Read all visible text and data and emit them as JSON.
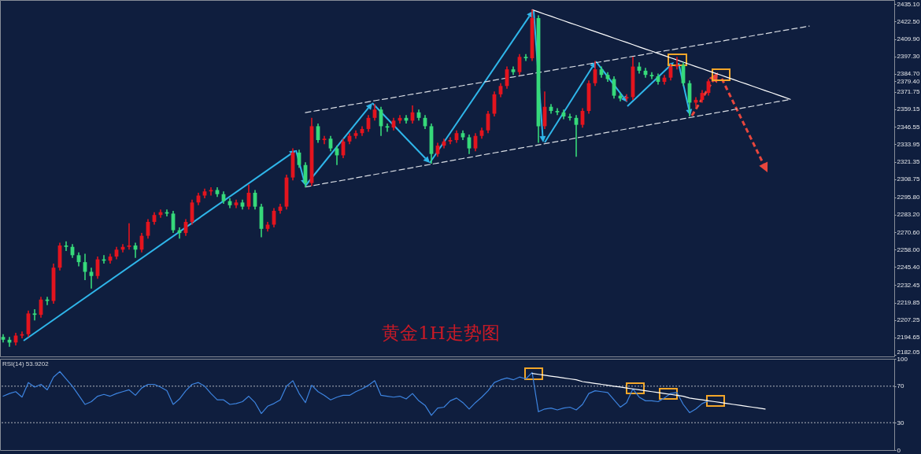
{
  "chart_data": [
    {
      "type": "candlestick",
      "title": "黄金1H走势图",
      "categories": [
        null,
        null,
        null,
        null,
        null,
        null,
        null,
        null,
        null,
        null,
        null,
        null,
        null,
        null,
        null,
        null,
        null,
        null,
        null,
        null,
        null,
        null,
        null,
        null,
        null,
        null,
        null,
        null,
        null,
        null,
        null,
        null,
        null,
        null,
        null,
        null,
        null,
        null,
        null,
        null,
        null,
        null,
        null,
        null,
        null,
        null,
        null,
        null,
        null,
        null,
        null,
        null,
        null,
        null,
        null,
        null,
        null,
        null,
        null,
        null,
        null,
        null,
        null,
        null,
        null,
        null,
        null,
        null,
        null,
        null,
        null,
        null,
        null,
        null,
        null,
        null,
        null,
        null,
        null,
        null,
        null,
        null,
        null,
        null,
        null,
        null,
        null,
        null,
        null,
        null,
        null,
        null,
        null,
        null,
        null,
        null,
        null,
        null,
        null,
        null,
        null,
        null,
        null,
        null,
        null,
        null,
        null,
        null,
        null,
        null,
        null,
        null,
        null,
        null,
        null,
        null,
        null,
        null,
        null,
        null,
        null,
        null,
        null,
        null,
        null,
        null,
        null,
        null,
        null,
        null,
        null,
        null,
        null,
        null,
        null,
        null,
        null,
        null,
        null,
        null,
        null,
        null
      ],
      "ohlc": [
        [
          2195,
          2197,
          2191,
          2193
        ],
        [
          2193,
          2195,
          2188,
          2191
        ],
        [
          2191,
          2198,
          2189,
          2196
        ],
        [
          2196,
          2199,
          2194,
          2197
        ],
        [
          2197,
          2214,
          2195,
          2212
        ],
        [
          2212,
          2215,
          2207,
          2211
        ],
        [
          2211,
          2224,
          2209,
          2222
        ],
        [
          2222,
          2224,
          2218,
          2221
        ],
        [
          2221,
          2248,
          2219,
          2245
        ],
        [
          2245,
          2263,
          2243,
          2261
        ],
        [
          2261,
          2264,
          2257,
          2260
        ],
        [
          2260,
          2262,
          2252,
          2254
        ],
        [
          2254,
          2256,
          2246,
          2249
        ],
        [
          2249,
          2255,
          2236,
          2242
        ],
        [
          2242,
          2245,
          2230,
          2239
        ],
        [
          2239,
          2253,
          2237,
          2251
        ],
        [
          2251,
          2254,
          2248,
          2250
        ],
        [
          2250,
          2255,
          2248,
          2253
        ],
        [
          2253,
          2260,
          2251,
          2258
        ],
        [
          2258,
          2262,
          2256,
          2260
        ],
        [
          2260,
          2277,
          2258,
          2261
        ],
        [
          2261,
          2263,
          2252,
          2258
        ],
        [
          2258,
          2270,
          2256,
          2268
        ],
        [
          2268,
          2280,
          2266,
          2278
        ],
        [
          2278,
          2285,
          2276,
          2283
        ],
        [
          2283,
          2287,
          2281,
          2285
        ],
        [
          2285,
          2287,
          2282,
          2284
        ],
        [
          2284,
          2286,
          2270,
          2272
        ],
        [
          2272,
          2274,
          2266,
          2270
        ],
        [
          2270,
          2280,
          2268,
          2278
        ],
        [
          2278,
          2294,
          2276,
          2292
        ],
        [
          2292,
          2299,
          2290,
          2297
        ],
        [
          2297,
          2302,
          2295,
          2300
        ],
        [
          2300,
          2303,
          2297,
          2301
        ],
        [
          2301,
          2303,
          2296,
          2298
        ],
        [
          2298,
          2300,
          2291,
          2293
        ],
        [
          2293,
          2295,
          2288,
          2290
        ],
        [
          2290,
          2294,
          2288,
          2292
        ],
        [
          2292,
          2294,
          2287,
          2289
        ],
        [
          2289,
          2305,
          2287,
          2299
        ],
        [
          2299,
          2301,
          2287,
          2289
        ],
        [
          2289,
          2291,
          2267,
          2273
        ],
        [
          2273,
          2278,
          2271,
          2276
        ],
        [
          2276,
          2288,
          2274,
          2286
        ],
        [
          2286,
          2291,
          2284,
          2289
        ],
        [
          2289,
          2312,
          2287,
          2310
        ],
        [
          2310,
          2331,
          2308,
          2328
        ],
        [
          2328,
          2330,
          2317,
          2319
        ],
        [
          2319,
          2321,
          2303,
          2306
        ],
        [
          2306,
          2353,
          2304,
          2347
        ],
        [
          2347,
          2349,
          2335,
          2337
        ],
        [
          2337,
          2340,
          2334,
          2338
        ],
        [
          2338,
          2340,
          2329,
          2331
        ],
        [
          2331,
          2333,
          2319,
          2326
        ],
        [
          2326,
          2338,
          2324,
          2336
        ],
        [
          2336,
          2342,
          2334,
          2340
        ],
        [
          2340,
          2344,
          2338,
          2342
        ],
        [
          2342,
          2347,
          2340,
          2345
        ],
        [
          2345,
          2355,
          2343,
          2353
        ],
        [
          2353,
          2363,
          2351,
          2359
        ],
        [
          2359,
          2361,
          2340,
          2347
        ],
        [
          2347,
          2349,
          2343,
          2346
        ],
        [
          2346,
          2353,
          2344,
          2351
        ],
        [
          2351,
          2355,
          2349,
          2353
        ],
        [
          2353,
          2355,
          2349,
          2351
        ],
        [
          2351,
          2362,
          2349,
          2357
        ],
        [
          2357,
          2359,
          2351,
          2353
        ],
        [
          2353,
          2355,
          2345,
          2347
        ],
        [
          2347,
          2349,
          2320,
          2327
        ],
        [
          2327,
          2335,
          2325,
          2333
        ],
        [
          2333,
          2338,
          2331,
          2336
        ],
        [
          2336,
          2339,
          2334,
          2337
        ],
        [
          2337,
          2344,
          2335,
          2342
        ],
        [
          2342,
          2344,
          2337,
          2339
        ],
        [
          2339,
          2341,
          2327,
          2331
        ],
        [
          2331,
          2342,
          2329,
          2340
        ],
        [
          2340,
          2346,
          2338,
          2344
        ],
        [
          2344,
          2358,
          2342,
          2356
        ],
        [
          2356,
          2372,
          2354,
          2370
        ],
        [
          2370,
          2378,
          2368,
          2376
        ],
        [
          2376,
          2390,
          2374,
          2388
        ],
        [
          2388,
          2390,
          2384,
          2386
        ],
        [
          2386,
          2399,
          2384,
          2397
        ],
        [
          2397,
          2399,
          2394,
          2396
        ],
        [
          2396,
          2431,
          2394,
          2425
        ],
        [
          2425,
          2427,
          2335,
          2347
        ],
        [
          2347,
          2372,
          2345,
          2361
        ],
        [
          2361,
          2363,
          2356,
          2358
        ],
        [
          2358,
          2360,
          2355,
          2357
        ],
        [
          2357,
          2359,
          2352,
          2354
        ],
        [
          2354,
          2356,
          2351,
          2353
        ],
        [
          2353,
          2355,
          2325,
          2348
        ],
        [
          2348,
          2360,
          2346,
          2358
        ],
        [
          2358,
          2380,
          2356,
          2378
        ],
        [
          2378,
          2394,
          2376,
          2388
        ],
        [
          2388,
          2390,
          2382,
          2384
        ],
        [
          2384,
          2386,
          2379,
          2381
        ],
        [
          2381,
          2383,
          2367,
          2369
        ],
        [
          2369,
          2371,
          2365,
          2367
        ],
        [
          2367,
          2370,
          2365,
          2368
        ],
        [
          2368,
          2397,
          2366,
          2390
        ],
        [
          2390,
          2393,
          2385,
          2387
        ],
        [
          2387,
          2389,
          2382,
          2384
        ],
        [
          2384,
          2386,
          2381,
          2383
        ],
        [
          2383,
          2385,
          2377,
          2379
        ],
        [
          2379,
          2384,
          2377,
          2382
        ],
        [
          2382,
          2392,
          2380,
          2390
        ],
        [
          2390,
          2397,
          2388,
          2391
        ],
        [
          2391,
          2393,
          2376,
          2378
        ],
        [
          2378,
          2380,
          2354,
          2364
        ],
        [
          2364,
          2368,
          2361,
          2366
        ],
        [
          2366,
          2373,
          2364,
          2371
        ],
        [
          2371,
          2381,
          2369,
          2379.4
        ],
        null,
        null,
        null,
        null,
        null,
        null,
        null,
        null,
        null,
        null,
        null,
        null,
        null,
        null,
        null,
        null,
        null,
        null,
        null,
        null,
        null,
        null,
        null,
        null,
        null,
        null,
        null,
        null,
        null
      ],
      "colors": [
        "#36d97a",
        "#36d97a",
        "#e3141e",
        "#e3141e",
        "#e3141e",
        "#36d97a",
        "#e3141e",
        "#36d97a",
        "#e3141e",
        "#e3141e",
        "#36d97a",
        "#36d97a",
        "#36d97a",
        "#36d97a",
        "#36d97a",
        "#e3141e",
        "#36d97a",
        "#e3141e",
        "#e3141e",
        "#e3141e",
        "#e3141e",
        "#36d97a",
        "#e3141e",
        "#e3141e",
        "#e3141e",
        "#e3141e",
        "#36d97a",
        "#36d97a",
        "#36d97a",
        "#e3141e",
        "#e3141e",
        "#e3141e",
        "#e3141e",
        "#e3141e",
        "#36d97a",
        "#36d97a",
        "#36d97a",
        "#e3141e",
        "#36d97a",
        "#e3141e",
        "#36d97a",
        "#36d97a",
        "#e3141e",
        "#e3141e",
        "#e3141e",
        "#e3141e",
        "#e3141e",
        "#36d97a",
        "#36d97a",
        "#e3141e",
        "#36d97a",
        "#e3141e",
        "#36d97a",
        "#36d97a",
        "#e3141e",
        "#e3141e",
        "#e3141e",
        "#e3141e",
        "#e3141e",
        "#e3141e",
        "#36d97a",
        "#36d97a",
        "#e3141e",
        "#e3141e",
        "#36d97a",
        "#e3141e",
        "#36d97a",
        "#36d97a",
        "#36d97a",
        "#e3141e",
        "#e3141e",
        "#e3141e",
        "#e3141e",
        "#36d97a",
        "#36d97a",
        "#e3141e",
        "#e3141e",
        "#e3141e",
        "#e3141e",
        "#e3141e",
        "#e3141e",
        "#36d97a",
        "#e3141e",
        "#36d97a",
        "#e3141e",
        "#36d97a",
        "#e3141e",
        "#36d97a",
        "#36d97a",
        "#36d97a",
        "#36d97a",
        "#36d97a",
        "#e3141e",
        "#e3141e",
        "#e3141e",
        "#36d97a",
        "#36d97a",
        "#36d97a",
        "#36d97a",
        "#e3141e",
        "#e3141e",
        "#36d97a",
        "#36d97a",
        "#36d97a",
        "#36d97a",
        "#e3141e",
        "#e3141e",
        "#e3141e",
        "#36d97a",
        "#36d97a",
        "#e3141e",
        "#e3141e",
        "#e3141e",
        null,
        null,
        null,
        null,
        null,
        null,
        null,
        null,
        null,
        null,
        null,
        null,
        null,
        null,
        null,
        null,
        null,
        null,
        null,
        null,
        null,
        null,
        null,
        null,
        null,
        null,
        null,
        null,
        null
      ],
      "ylim": [
        2181,
        2438
      ],
      "yticks": [
        {
          "value": 2435.1,
          "label": "2435.10"
        },
        {
          "value": 2422.5,
          "label": "2422.50"
        },
        {
          "value": 2409.9,
          "label": "2409.90"
        },
        {
          "value": 2397.3,
          "label": "2397.30"
        },
        {
          "value": 2384.7,
          "label": "2384.70"
        },
        {
          "value": 2379.4,
          "label": "2379.40"
        },
        {
          "value": 2371.75,
          "label": "2371.75"
        },
        {
          "value": 2359.15,
          "label": "2359.15"
        },
        {
          "value": 2346.55,
          "label": "2346.55"
        },
        {
          "value": 2333.95,
          "label": "2333.95"
        },
        {
          "value": 2321.35,
          "label": "2321.35"
        },
        {
          "value": 2308.75,
          "label": "2308.75"
        },
        {
          "value": 2295.8,
          "label": "2295.80"
        },
        {
          "value": 2283.2,
          "label": "2283.20"
        },
        {
          "value": 2270.6,
          "label": "2270.60"
        },
        {
          "value": 2258,
          "label": "2258.00"
        },
        {
          "value": 2245.4,
          "label": "2245.40"
        },
        {
          "value": 2232.45,
          "label": "2232.45"
        },
        {
          "value": 2219.85,
          "label": "2219.85"
        },
        {
          "value": 2207.25,
          "label": "2207.25"
        },
        {
          "value": 2194.65,
          "label": "2194.65"
        },
        {
          "value": 2182.05,
          "label": "2182.05"
        }
      ],
      "tick_labels": "y",
      "series": [
        {
          "type": "line",
          "color": "#ffffff",
          "values": [
            null,
            null,
            null,
            null,
            null,
            null,
            null,
            null,
            null,
            null,
            null,
            null,
            null,
            null,
            null,
            null,
            null,
            null,
            null,
            null,
            null,
            null,
            null,
            null,
            null,
            null,
            null,
            null,
            null,
            null,
            null,
            null,
            null,
            null,
            null,
            null,
            null,
            null,
            null,
            null,
            null,
            null,
            null,
            null,
            null,
            null,
            null,
            null,
            null,
            null,
            null,
            null,
            null,
            null,
            null,
            null,
            null,
            null,
            null,
            null,
            null,
            null,
            null,
            null,
            null,
            null,
            null,
            null,
            null,
            null,
            null,
            null,
            null,
            null,
            null,
            null,
            null,
            null,
            null,
            null,
            null,
            null,
            null,
            null,
            2431.0,
            2429.4,
            2427.8,
            2426.3,
            2424.7,
            2423.1,
            2421.5,
            2420.0,
            2418.4,
            2416.8,
            2415.2,
            2413.7,
            2412.1,
            2410.5,
            2408.9,
            2407.4,
            2405.8,
            2404.2,
            2402.6,
            2401.1,
            2399.5,
            2397.9,
            2396.3,
            2394.8,
            2393.2,
            2391.6,
            2390.0,
            2388.5,
            2386.9,
            2385.3,
            2383.8,
            2382.2,
            2380.6,
            2379.0,
            2377.5,
            2375.9,
            2374.3,
            2372.7,
            2371.2,
            2369.6,
            2368.0,
            2366.4,
            null,
            null,
            null,
            null,
            null,
            null,
            null,
            null,
            null,
            null,
            null,
            null,
            null,
            null,
            null,
            null
          ]
        },
        {
          "type": "line",
          "color": "#d9dde4",
          "line_style": "dashed",
          "values": [
            null,
            null,
            null,
            null,
            null,
            null,
            null,
            null,
            null,
            null,
            null,
            null,
            null,
            null,
            null,
            null,
            null,
            null,
            null,
            null,
            null,
            null,
            null,
            null,
            null,
            null,
            null,
            null,
            null,
            null,
            null,
            null,
            null,
            null,
            null,
            null,
            null,
            null,
            null,
            null,
            null,
            null,
            null,
            null,
            null,
            null,
            null,
            null,
            2356.8,
            2357.6,
            2358.4,
            2359.1,
            2359.9,
            2360.7,
            2361.5,
            2362.3,
            2363.0,
            2363.8,
            2364.6,
            2365.4,
            2366.2,
            2366.9,
            2367.7,
            2368.5,
            2369.3,
            2370.1,
            2370.8,
            2371.6,
            2372.4,
            2373.2,
            2374.0,
            2374.7,
            2375.5,
            2376.3,
            2377.1,
            2377.9,
            2378.6,
            2379.4,
            2380.2,
            2381.0,
            2381.8,
            2382.5,
            2383.3,
            2384.1,
            2384.9,
            2385.7,
            2386.4,
            2387.2,
            2388.0,
            2388.8,
            2389.6,
            2390.3,
            2391.1,
            2391.9,
            2392.7,
            2393.5,
            2394.2,
            2395.0,
            2395.8,
            2396.6,
            2397.4,
            2398.1,
            2398.9,
            2399.7,
            2400.5,
            2401.3,
            2402.0,
            2402.8,
            2403.6,
            2404.4,
            2405.2,
            2405.9,
            2406.7,
            2407.5,
            2408.3,
            2409.1,
            2409.8,
            2410.6,
            2411.4,
            2412.2,
            2413.0,
            2413.7,
            2414.5,
            2415.3,
            2416.1,
            2416.9,
            2417.6,
            2418.4,
            2419.2,
            null,
            null,
            null,
            null,
            null,
            null,
            null,
            null,
            null,
            null,
            null,
            null,
            null
          ]
        },
        {
          "type": "line",
          "color": "#d9dde4",
          "line_style": "dashed",
          "values": [
            null,
            null,
            null,
            null,
            null,
            null,
            null,
            null,
            null,
            null,
            null,
            null,
            null,
            null,
            null,
            null,
            null,
            null,
            null,
            null,
            null,
            null,
            null,
            null,
            null,
            null,
            null,
            null,
            null,
            null,
            null,
            null,
            null,
            null,
            null,
            null,
            null,
            null,
            null,
            null,
            null,
            null,
            null,
            null,
            null,
            null,
            null,
            null,
            2303.2,
            2304.0,
            2304.8,
            2305.7,
            2306.5,
            2307.3,
            2308.1,
            2308.9,
            2309.8,
            2310.6,
            2311.4,
            2312.2,
            2313.0,
            2313.9,
            2314.7,
            2315.5,
            2316.3,
            2317.1,
            2318.0,
            2318.8,
            2319.6,
            2320.4,
            2321.2,
            2322.1,
            2322.9,
            2323.7,
            2324.5,
            2325.3,
            2326.2,
            2327.0,
            2327.8,
            2328.6,
            2329.4,
            2330.3,
            2331.1,
            2331.9,
            2332.7,
            2333.5,
            2334.4,
            2335.2,
            2336.0,
            2336.8,
            2337.6,
            2338.5,
            2339.3,
            2340.1,
            2340.9,
            2341.7,
            2342.6,
            2343.4,
            2344.2,
            2345.0,
            2345.8,
            2346.7,
            2347.5,
            2348.3,
            2349.1,
            2349.9,
            2350.8,
            2351.6,
            2352.4,
            2353.2,
            2354.0,
            2354.9,
            2355.7,
            2356.5,
            2357.3,
            2358.1,
            2359.0,
            2359.8,
            2360.6,
            2361.4,
            2362.2,
            2363.1,
            2363.9,
            2364.7,
            2365.5,
            2366.3,
            null,
            null,
            null,
            null,
            null,
            null,
            null,
            null,
            null,
            null,
            null,
            null,
            null,
            null,
            null,
            null
          ]
        }
      ]
    },
    {
      "type": "line",
      "title": "RSI(14) 53.9202",
      "categories": [
        null,
        null,
        null,
        null,
        null,
        null,
        null,
        null,
        null,
        null,
        null,
        null,
        null,
        null,
        null,
        null,
        null,
        null,
        null,
        null,
        null,
        null,
        null,
        null,
        null,
        null,
        null,
        null,
        null,
        null,
        null,
        null,
        null,
        null,
        null,
        null,
        null,
        null,
        null,
        null,
        null,
        null,
        null,
        null,
        null,
        null,
        null,
        null,
        null,
        null,
        null,
        null,
        null,
        null,
        null,
        null,
        null,
        null,
        null,
        null,
        null,
        null,
        null,
        null,
        null,
        null,
        null,
        null,
        null,
        null,
        null,
        null,
        null,
        null,
        null,
        null,
        null,
        null,
        null,
        null,
        null,
        null,
        null,
        null,
        null,
        null,
        null,
        null,
        null,
        null,
        null,
        null,
        null,
        null,
        null,
        null,
        null,
        null,
        null,
        null,
        null,
        null,
        null,
        null,
        null,
        null,
        null,
        null,
        null,
        null,
        null,
        null,
        null,
        null,
        null,
        null,
        null,
        null,
        null,
        null,
        null,
        null,
        null,
        null,
        null,
        null,
        null,
        null,
        null,
        null,
        null,
        null,
        null,
        null,
        null,
        null,
        null,
        null,
        null,
        null,
        null,
        null
      ],
      "series": [
        {
          "color": "#3d84e0",
          "values": [
            59,
            62,
            64,
            58,
            74,
            69,
            72,
            66,
            80,
            86,
            78,
            70,
            60,
            50,
            53,
            59,
            61,
            59,
            62,
            64,
            66,
            60,
            68,
            72,
            72,
            69,
            65,
            50,
            56,
            65,
            72,
            74,
            70,
            62,
            55,
            55,
            50,
            51,
            53,
            59,
            52,
            40,
            48,
            51,
            55,
            70,
            76,
            62,
            52,
            71,
            64,
            60,
            55,
            58,
            60,
            60,
            64,
            67,
            71,
            76,
            60,
            59,
            58,
            59,
            56,
            62,
            54,
            49,
            38,
            46,
            47,
            54,
            57,
            52,
            45,
            52,
            58,
            65,
            74,
            77,
            79,
            77,
            80,
            78,
            85,
            42,
            45,
            46,
            44,
            46,
            47,
            44,
            50,
            62,
            65,
            64,
            63,
            55,
            47,
            52,
            67,
            58,
            54,
            54,
            53,
            57,
            62,
            63,
            50,
            41,
            45,
            51,
            53.9202,
            null,
            null,
            null,
            null,
            null,
            null,
            null,
            null,
            null,
            null,
            null,
            null,
            null,
            null,
            null,
            null,
            null,
            null,
            null,
            null,
            null,
            null,
            null,
            null,
            null,
            null,
            null,
            null,
            null
          ]
        },
        {
          "type": "line",
          "color": "#ffffff",
          "values": [
            null,
            null,
            null,
            null,
            null,
            null,
            null,
            null,
            null,
            null,
            null,
            null,
            null,
            null,
            null,
            null,
            null,
            null,
            null,
            null,
            null,
            null,
            null,
            null,
            null,
            null,
            null,
            null,
            null,
            null,
            null,
            null,
            null,
            null,
            null,
            null,
            null,
            null,
            null,
            null,
            null,
            null,
            null,
            null,
            null,
            null,
            null,
            null,
            null,
            null,
            null,
            null,
            null,
            null,
            null,
            null,
            null,
            null,
            null,
            null,
            null,
            null,
            null,
            null,
            null,
            null,
            null,
            null,
            null,
            null,
            null,
            null,
            null,
            null,
            null,
            null,
            null,
            null,
            null,
            null,
            null,
            null,
            null,
            null,
            84,
            83,
            82,
            81,
            80,
            79,
            78,
            77,
            75,
            74,
            73,
            72,
            71,
            70,
            69,
            68,
            67,
            66,
            65,
            64,
            63,
            62,
            61,
            60,
            59,
            57,
            56,
            55,
            54,
            53,
            52,
            51,
            50,
            49,
            48,
            47,
            46,
            45,
            null,
            null,
            null,
            null,
            null,
            null,
            null,
            null,
            null,
            null,
            null,
            null,
            null,
            null,
            null,
            null,
            null,
            null,
            null,
            null
          ]
        }
      ],
      "ylim": [
        0,
        100
      ],
      "yticks": [
        0,
        30,
        70,
        100
      ],
      "ref_lines": [
        {
          "axis": "y",
          "value": 70,
          "color": "#aeb3bc",
          "line_style": "dotted"
        },
        {
          "axis": "y",
          "value": 30,
          "color": "#aeb3bc",
          "line_style": "dotted"
        }
      ],
      "tick_labels": "y"
    }
  ]
}
